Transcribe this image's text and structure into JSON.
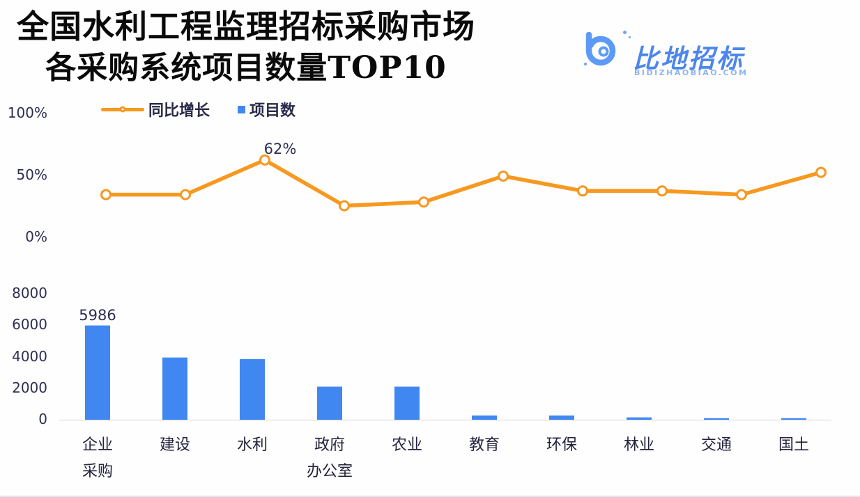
{
  "title": {
    "line1": "全国水利工程监理招标采购市场",
    "line2": "各采购系统项目数量TOP10"
  },
  "logo": {
    "name": "比地招标",
    "domain": "BIDIZHAOBIAO.COM"
  },
  "legend": {
    "growth_label": "同比增长",
    "count_label": "项目数"
  },
  "colors": {
    "bar_blue": "#4187F2",
    "line_orange": "#F7981F",
    "text_dark": "#2d2d55",
    "axis_gray": "#d9d9d9"
  },
  "chart_data": [
    {
      "type": "line",
      "name": "同比增长",
      "categories": [
        "企业采购",
        "建设",
        "水利",
        "政府办公室",
        "农业",
        "教育",
        "环保",
        "林业",
        "交通",
        "国土"
      ],
      "values": [
        34,
        34,
        62,
        25,
        28,
        49,
        37,
        37,
        34,
        52
      ],
      "unit": "%",
      "ylim": [
        0,
        100
      ],
      "yticks": [
        "100%",
        "50%",
        "0%"
      ],
      "labeled_point": {
        "index": 2,
        "text": "62%"
      },
      "legend_position": "top",
      "grid": false
    },
    {
      "type": "bar",
      "name": "项目数",
      "categories": [
        "企业采购",
        "建设",
        "水利",
        "政府办公室",
        "农业",
        "教育",
        "环保",
        "林业",
        "交通",
        "国土"
      ],
      "category_lines": [
        [
          "企业",
          "采购"
        ],
        [
          "建设"
        ],
        [
          "水利"
        ],
        [
          "政府",
          "办公室"
        ],
        [
          "农业"
        ],
        [
          "教育"
        ],
        [
          "环保"
        ],
        [
          "林业"
        ],
        [
          "交通"
        ],
        [
          "国土"
        ]
      ],
      "values": [
        5986,
        3950,
        3850,
        2100,
        2100,
        270,
        270,
        150,
        100,
        100
      ],
      "ylim": [
        0,
        8000
      ],
      "yticks": [
        "8000",
        "6000",
        "4000",
        "2000",
        "0"
      ],
      "labeled_point": {
        "index": 0,
        "text": "5986"
      },
      "grid": false
    }
  ]
}
